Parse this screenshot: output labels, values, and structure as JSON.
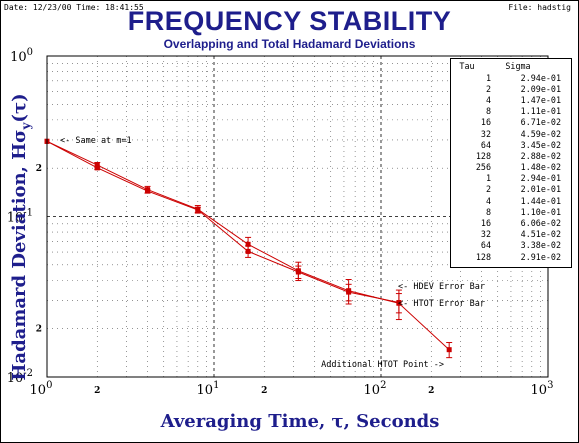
{
  "header": {
    "date_text": "Date: 12/23/00   Time: 18:41:55",
    "file_text": "File: hadstig"
  },
  "chart_data": {
    "type": "line",
    "title": "FREQUENCY STABILITY",
    "subtitle": "Overlapping and Total Hadamard Deviations",
    "xlabel": "Averaging Time, τ, Seconds",
    "ylabel": "Hadamard Deviation, Hσy(τ)",
    "x_scale": "log",
    "y_scale": "log",
    "xlim": [
      1,
      1000
    ],
    "ylim": [
      0.01,
      1
    ],
    "grid": true,
    "x_major_ticks": [
      {
        "value": 1,
        "base": "10",
        "exp": "0"
      },
      {
        "value": 10,
        "base": "10",
        "exp": "1"
      },
      {
        "value": 100,
        "base": "10",
        "exp": "2"
      },
      {
        "value": 1000,
        "base": "10",
        "exp": "3"
      }
    ],
    "y_major_ticks": [
      {
        "value": 1,
        "base": "10",
        "exp": "0"
      },
      {
        "value": 0.1,
        "base": "10",
        "exp": "-1"
      },
      {
        "value": 0.01,
        "base": "10",
        "exp": "-2"
      }
    ],
    "x_minor_labels": [
      {
        "value": 2,
        "label": "2"
      },
      {
        "value": 20,
        "label": "2"
      },
      {
        "value": 200,
        "label": "2"
      }
    ],
    "y_minor_labels": [
      {
        "value": 0.2,
        "label": "2"
      },
      {
        "value": 0.02,
        "label": "2"
      }
    ],
    "series": [
      {
        "color": "#cc0000",
        "x": [
          1,
          2,
          4,
          8,
          16,
          32,
          64,
          128,
          256
        ],
        "y": [
          0.294,
          0.209,
          0.147,
          0.111,
          0.0671,
          0.0459,
          0.0345,
          0.0288,
          0.0148
        ],
        "err": [
          0,
          0.008,
          0.007,
          0.006,
          0.007,
          0.006,
          0.006,
          0.006,
          0.0016
        ]
      },
      {
        "color": "#cc0000",
        "x": [
          1,
          2,
          4,
          8,
          16,
          32,
          64,
          128
        ],
        "y": [
          0.294,
          0.201,
          0.144,
          0.11,
          0.0606,
          0.0451,
          0.0338,
          0.0291
        ],
        "err": [
          0,
          0.005,
          0.004,
          0.004,
          0.005,
          0.004,
          0.004,
          0.004
        ]
      }
    ],
    "legend": {
      "headers": {
        "tau": "Tau",
        "sigma": "Sigma"
      },
      "rows": [
        {
          "tau": "1",
          "sigma": "2.94e-01"
        },
        {
          "tau": "2",
          "sigma": "2.09e-01"
        },
        {
          "tau": "4",
          "sigma": "1.47e-01"
        },
        {
          "tau": "8",
          "sigma": "1.11e-01"
        },
        {
          "tau": "16",
          "sigma": "6.71e-02"
        },
        {
          "tau": "32",
          "sigma": "4.59e-02"
        },
        {
          "tau": "64",
          "sigma": "3.45e-02"
        },
        {
          "tau": "128",
          "sigma": "2.88e-02"
        },
        {
          "tau": "256",
          "sigma": "1.48e-02"
        },
        {
          "tau": "1",
          "sigma": "2.94e-01"
        },
        {
          "tau": "2",
          "sigma": "2.01e-01"
        },
        {
          "tau": "4",
          "sigma": "1.44e-01"
        },
        {
          "tau": "8",
          "sigma": "1.10e-01"
        },
        {
          "tau": "16",
          "sigma": "6.06e-02"
        },
        {
          "tau": "32",
          "sigma": "4.51e-02"
        },
        {
          "tau": "64",
          "sigma": "3.38e-02"
        },
        {
          "tau": "128",
          "sigma": "2.91e-02"
        }
      ]
    },
    "annotations": [
      {
        "text": "<- Same at m=1",
        "anchor": "left"
      },
      {
        "text": "<- HDEV Error Bar",
        "anchor": "left"
      },
      {
        "text": "<- HTOT Error Bar",
        "anchor": "left"
      },
      {
        "text": "Additional HTOT Point ->",
        "anchor": "right"
      }
    ]
  }
}
